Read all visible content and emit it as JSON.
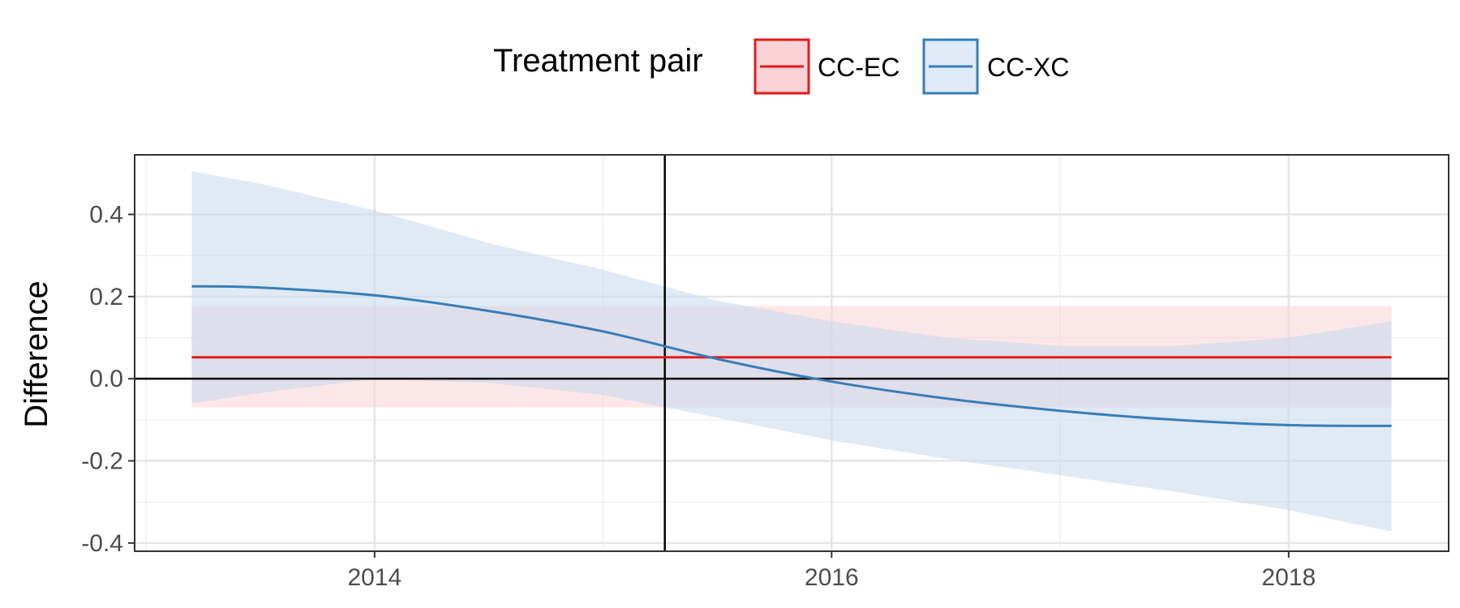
{
  "chart_data": {
    "type": "line",
    "title": "",
    "xlabel": "",
    "ylabel": "Difference",
    "legend": {
      "title": "Treatment pair",
      "position": "top"
    },
    "xlim": [
      2012.95,
      2018.7
    ],
    "ylim": [
      -0.42,
      0.545
    ],
    "xticks": [
      2014,
      2016,
      2018
    ],
    "xtick_labels": [
      "2014",
      "2016",
      "2018"
    ],
    "yticks": [
      -0.4,
      -0.2,
      0.0,
      0.2,
      0.4
    ],
    "ytick_labels": [
      "-0.4",
      "-0.2",
      "0.0",
      "0.2",
      "0.4"
    ],
    "grid": true,
    "reference_lines": {
      "horizontal_y": 0.0,
      "vertical_x": 2015.27
    },
    "series": [
      {
        "name": "CC-EC",
        "color": "#e41a1c",
        "fill": "#f9d3d5",
        "x": [
          2013.2,
          2014.0,
          2015.0,
          2016.0,
          2017.0,
          2018.0,
          2018.45
        ],
        "y": [
          0.052,
          0.052,
          0.052,
          0.052,
          0.052,
          0.052,
          0.052
        ],
        "lower": [
          -0.07,
          -0.07,
          -0.07,
          -0.07,
          -0.07,
          -0.07,
          -0.07
        ],
        "upper": [
          0.177,
          0.177,
          0.177,
          0.177,
          0.177,
          0.177,
          0.177
        ]
      },
      {
        "name": "CC-XC",
        "color": "#377eb8",
        "fill": "#c6d9ec",
        "x": [
          2013.2,
          2013.5,
          2014.0,
          2014.5,
          2015.0,
          2015.5,
          2016.0,
          2016.5,
          2017.0,
          2017.5,
          2018.0,
          2018.45
        ],
        "y": [
          0.225,
          0.222,
          0.203,
          0.165,
          0.115,
          0.048,
          -0.007,
          -0.048,
          -0.078,
          -0.1,
          -0.113,
          -0.115
        ],
        "lower": [
          -0.06,
          -0.035,
          0.0,
          -0.01,
          -0.04,
          -0.095,
          -0.15,
          -0.195,
          -0.235,
          -0.275,
          -0.32,
          -0.372
        ],
        "upper": [
          0.505,
          0.475,
          0.41,
          0.33,
          0.265,
          0.19,
          0.14,
          0.1,
          0.08,
          0.08,
          0.1,
          0.14
        ]
      }
    ]
  }
}
